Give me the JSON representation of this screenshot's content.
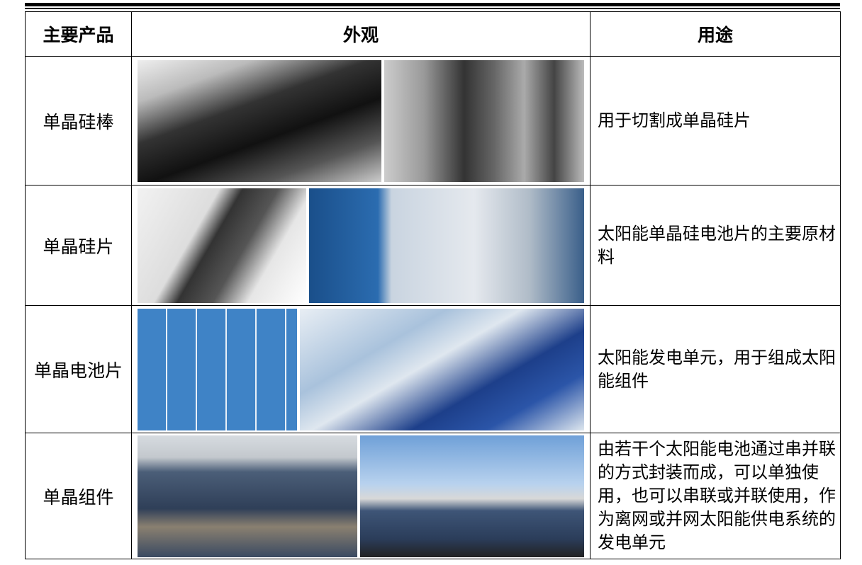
{
  "table": {
    "header": [
      "主要产品",
      "外观",
      "用途"
    ],
    "rows": [
      {
        "product": "单晶硅棒",
        "use": "用于切割成单晶硅片"
      },
      {
        "product": "单晶硅片",
        "use": "太阳能单晶硅电池片的主要原材料"
      },
      {
        "product": "单晶电池片",
        "use": "太阳能发电单元，用于组成太阳能组件"
      },
      {
        "product": "单晶组件",
        "use": "由若干个太阳能电池通过串并联的方式封装而成，可以单独使用，也可以串联或并联使用，作为离网或并网太阳能供电系统的发电单元"
      }
    ]
  }
}
